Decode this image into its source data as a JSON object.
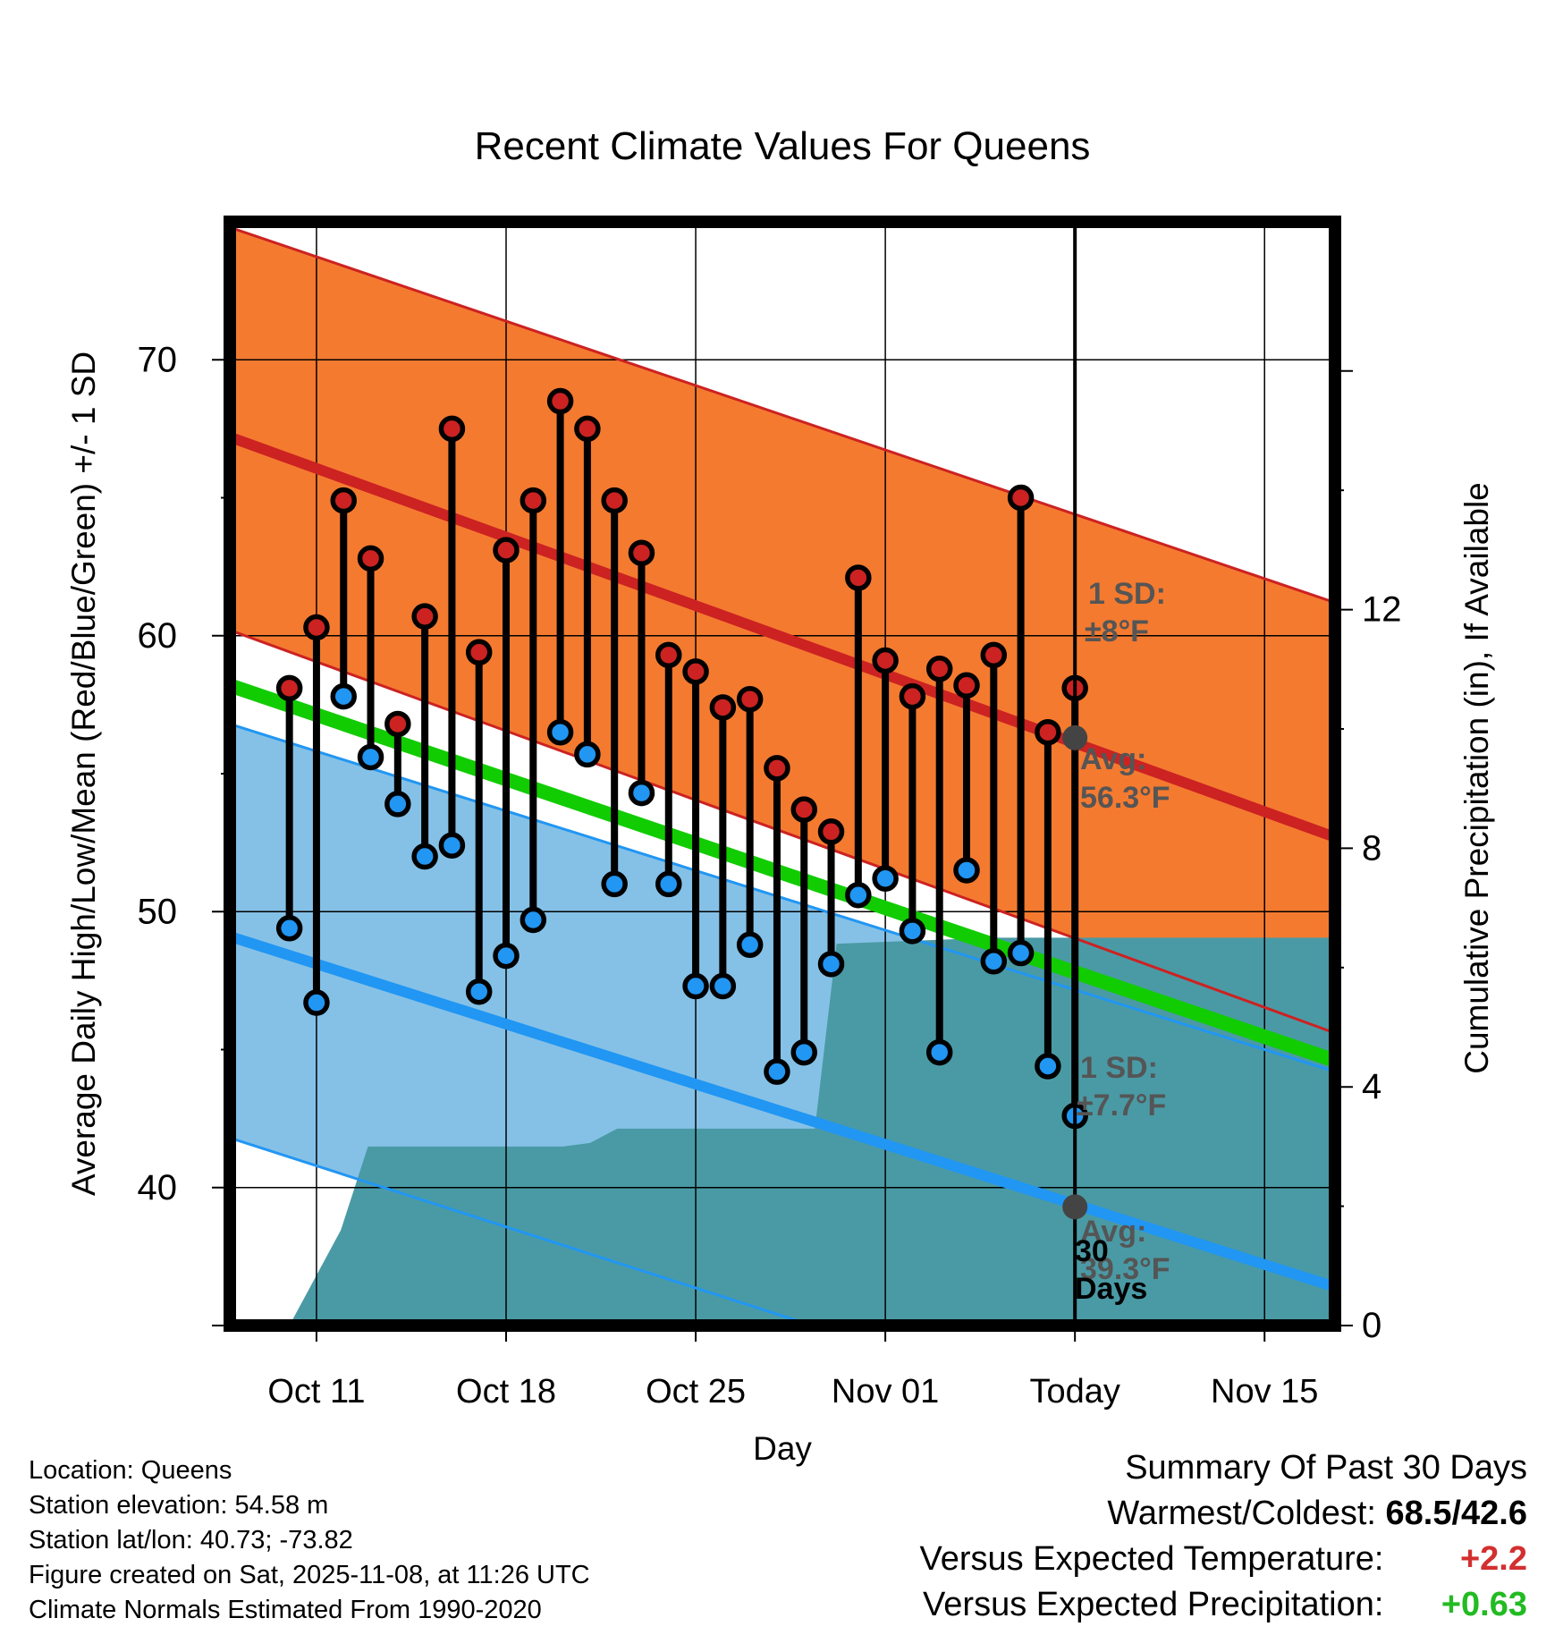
{
  "chart_data": {
    "type": "line",
    "title": "Recent Climate Values For Queens",
    "xlabel": "Day",
    "ylabel": "Average Daily High/Low/Mean (Red/Blue/Green) +/- 1 SD",
    "y2label": "Cumulative Precipitation (in), If Available",
    "ylim": [
      35,
      75
    ],
    "y2lim": [
      0,
      18.5
    ],
    "xlim": [
      -3.2,
      37.6
    ],
    "yticks": [
      "40",
      "50",
      "60",
      "70"
    ],
    "y2ticks": [
      "0",
      "4",
      "8",
      "12"
    ],
    "xticks": [
      {
        "day": 0,
        "label": "Oct 11"
      },
      {
        "day": 7,
        "label": "Oct 18"
      },
      {
        "day": 14,
        "label": "Oct 25"
      },
      {
        "day": 21,
        "label": "Nov 01"
      },
      {
        "day": 28,
        "label": "Today"
      },
      {
        "day": 35,
        "label": "Nov 15"
      }
    ],
    "normals": {
      "high_mean_start": 67.2,
      "high_mean_end": 52.7,
      "high_sd_upper_start": 74.8,
      "high_sd_upper_end": 61.2,
      "high_sd_lower_start": 60.2,
      "high_sd_lower_end": 45.6,
      "mean_start": 58.2,
      "mean_end": 44.6,
      "low_mean_start": 49.1,
      "low_mean_end": 36.4,
      "low_sd_upper_start": 56.8,
      "low_sd_upper_end": 44.2,
      "low_sd_lower_start": 41.8,
      "low_sd_lower_end": 28.9
    },
    "series": [
      {
        "name": "Daily High",
        "color": "#cc2222",
        "values": [
          58.1,
          60.3,
          64.9,
          62.8,
          56.8,
          60.7,
          67.5,
          59.4,
          63.1,
          64.9,
          68.5,
          67.5,
          64.9,
          63.0,
          59.3,
          58.7,
          57.4,
          57.7,
          55.2,
          53.7,
          52.9,
          62.1,
          59.1,
          57.8,
          58.8,
          58.2,
          59.3,
          65.0,
          56.5,
          58.1
        ]
      },
      {
        "name": "Daily Low",
        "color": "#2196f3",
        "values": [
          49.4,
          46.7,
          57.8,
          55.6,
          53.9,
          52.0,
          52.4,
          47.1,
          48.4,
          49.7,
          56.5,
          55.7,
          51.0,
          54.3,
          51.0,
          47.3,
          47.3,
          48.8,
          44.2,
          44.9,
          48.1,
          50.6,
          51.2,
          49.3,
          44.9,
          51.5,
          48.2,
          48.5,
          44.4,
          42.6
        ]
      },
      {
        "name": "Cumulative Precipitation",
        "days": [
          -1,
          0.9,
          1.9,
          9.1,
          10.1,
          11.1,
          16.0,
          18.4,
          19.2,
          25.0,
          37.6
        ],
        "values": [
          0,
          1.6,
          3.0,
          3.0,
          3.06,
          3.3,
          3.3,
          3.3,
          6.4,
          6.5,
          6.5
        ]
      }
    ],
    "annotations": {
      "high_sd_label": "1 SD:",
      "high_sd_value": "±8°F",
      "high_avg_label": "Avg:",
      "high_avg_value": "56.3°F",
      "high_avg_today": 56.3,
      "low_sd_label": "1 SD:",
      "low_sd_value": "±7.7°F",
      "low_avg_label": "Avg:",
      "low_avg_value": "39.3°F",
      "low_avg_today": 39.3,
      "precip_days_number": "30",
      "precip_days_word": "Days"
    }
  },
  "info": {
    "location": "Location: Queens",
    "elevation": "Station elevation: 54.58 m",
    "latlon": "Station lat/lon: 40.73; -73.82",
    "created": "Figure created on Sat, 2025-11-08, at 11:26 UTC",
    "normals": "Climate Normals Estimated From 1990-2020"
  },
  "summary": {
    "title": "Summary Of Past 30 Days",
    "warm_cold_label": "Warmest/Coldest:",
    "warm_cold_value": "68.5/42.6",
    "temp_label": "Versus Expected Temperature:",
    "temp_value": "+2.2",
    "temp_color": "#d32f2f",
    "precip_label": "Versus Expected Precipitation:",
    "precip_value": "+0.63",
    "precip_color": "#22bb22"
  }
}
